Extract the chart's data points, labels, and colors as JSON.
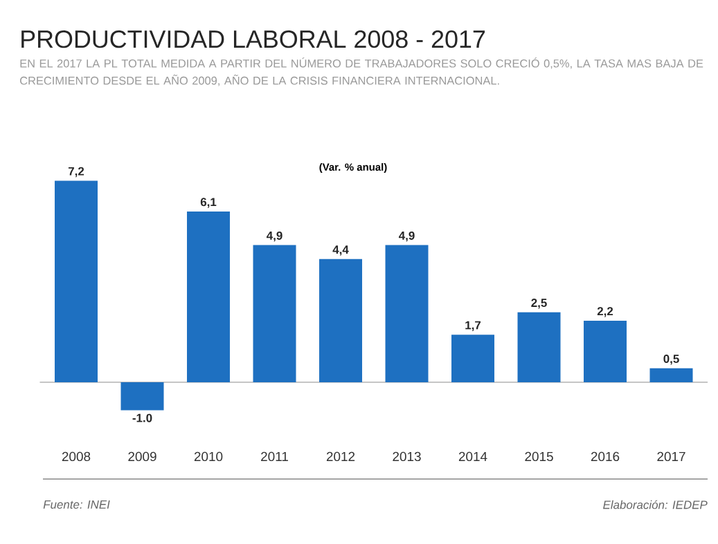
{
  "chart_data": {
    "type": "bar",
    "title": "PRODUCTIVIDAD LABORAL 2008 - 2017",
    "subtitle": "EN EL 2017 LA PL TOTAL MEDIDA A PARTIR DEL NÚMERO DE TRABAJADORES SOLO CRECIÓ 0,5%, LA TASA MAS BAJA DE CRECIMIENTO DESDE EL AÑO 2009, AÑO DE LA CRISIS FINANCIERA INTERNACIONAL.",
    "categories": [
      "2008",
      "2009",
      "2010",
      "2011",
      "2012",
      "2013",
      "2014",
      "2015",
      "2016",
      "2017"
    ],
    "values": [
      7.2,
      -1.0,
      6.1,
      4.9,
      4.4,
      4.9,
      1.7,
      2.5,
      2.2,
      0.5
    ],
    "value_labels": [
      "7,2",
      "-1.0",
      "6,1",
      "4,9",
      "4,4",
      "4,9",
      "1,7",
      "2,5",
      "2,2",
      "0,5"
    ],
    "color": "#1e70c1",
    "annotations": [
      "(Var. % anual)",
      "Fuente: INEI",
      "Elaboración: IEDEP"
    ]
  }
}
